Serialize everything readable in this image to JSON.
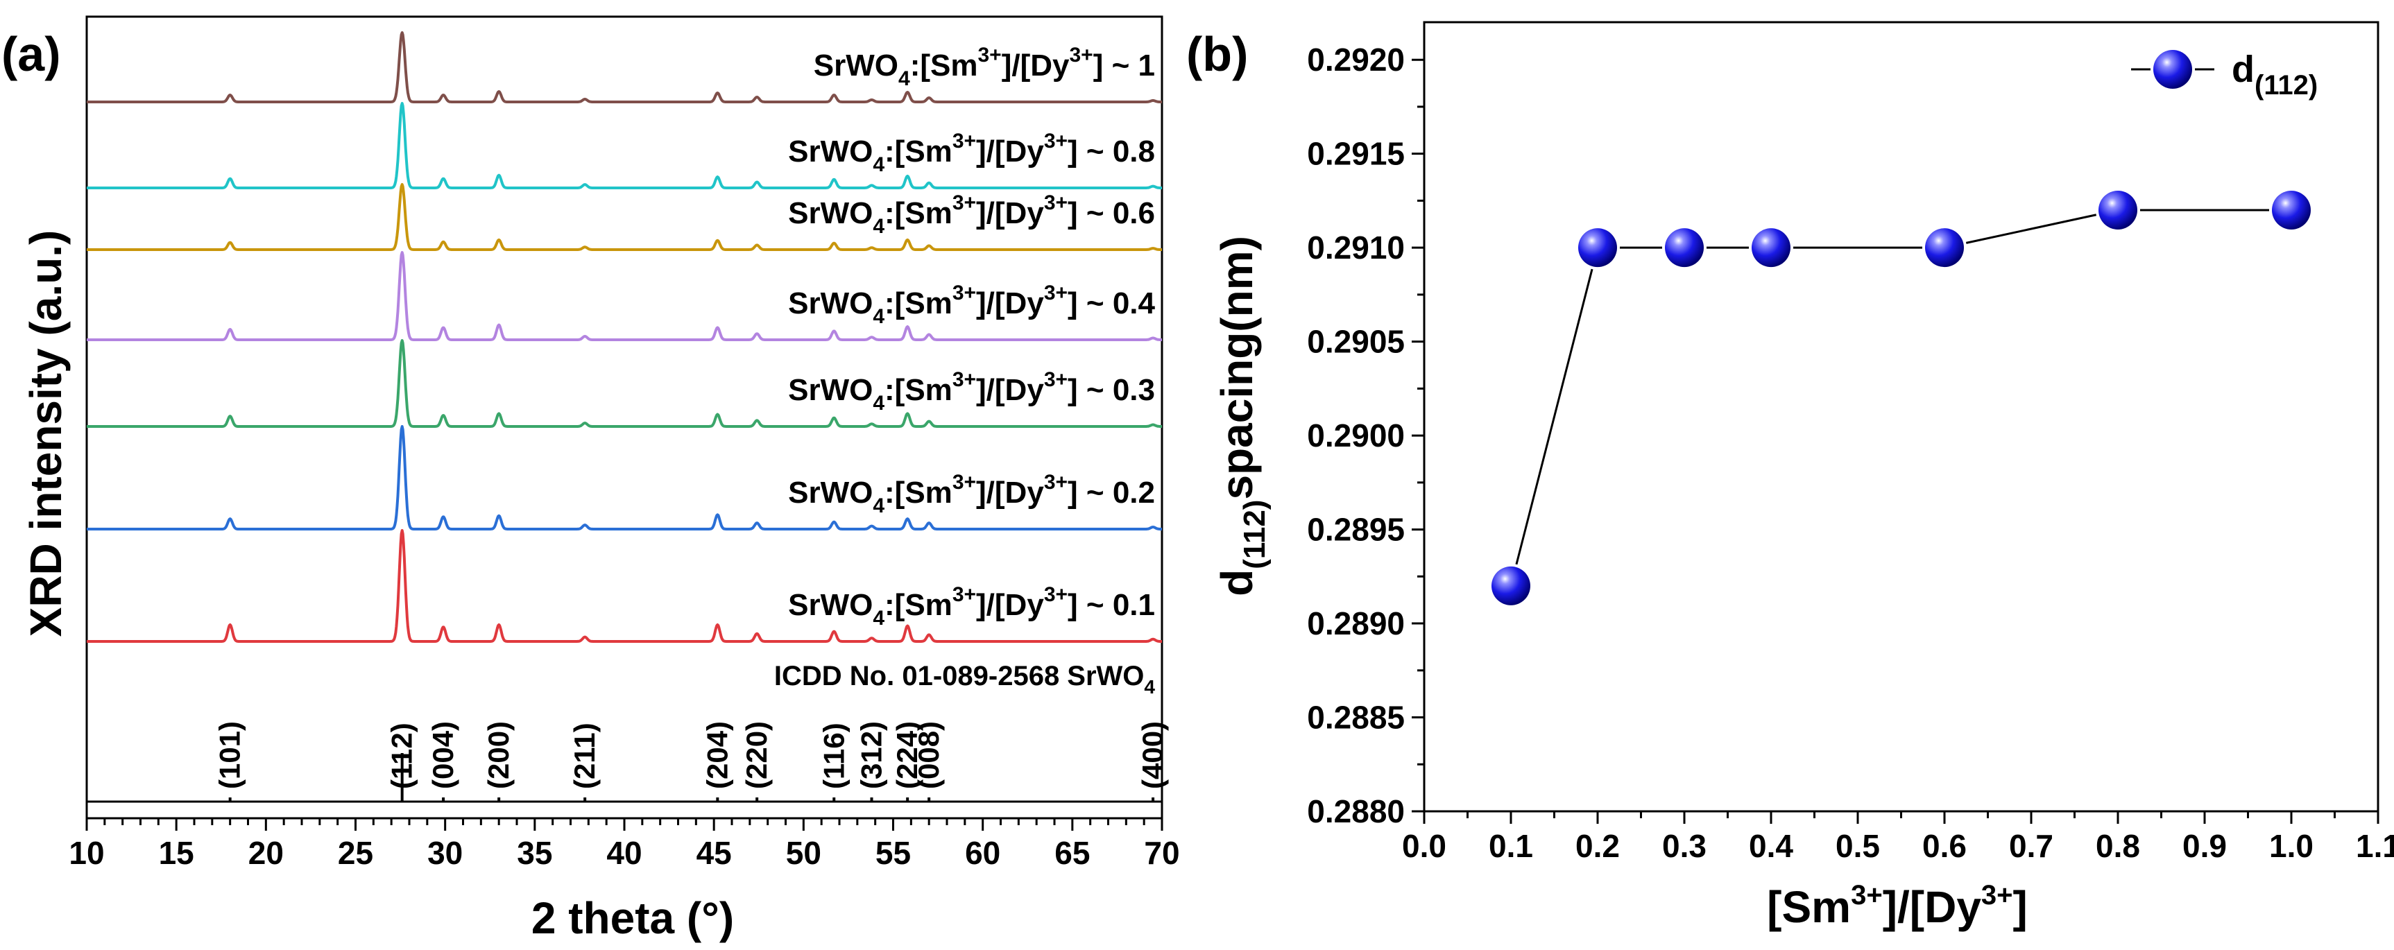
{
  "chart_data": [
    {
      "panel": "(a)",
      "type": "line",
      "xlabel": "2 theta (°)",
      "ylabel": "XRD intensity (a.u.)",
      "xlim": [
        10,
        70
      ],
      "xticks": [
        "10",
        "15",
        "20",
        "25",
        "30",
        "35",
        "40",
        "45",
        "50",
        "55",
        "60",
        "65",
        "70"
      ],
      "yticks": "none",
      "peaks_2theta": [
        18.0,
        27.6,
        29.9,
        33.0,
        37.8,
        45.2,
        47.4,
        51.7,
        53.8,
        55.8,
        57.0,
        69.5
      ],
      "series": [
        {
          "label_main": "SrWO",
          "label_rest": ":[Sm",
          "label_mid": "]/[Dy",
          "label_end": "] ~ 1",
          "color": "#7f4f4a",
          "peak_intensities": [
            0.1,
            1.0,
            0.1,
            0.15,
            0.04,
            0.13,
            0.07,
            0.1,
            0.03,
            0.14,
            0.06,
            0.02
          ]
        },
        {
          "label_main": "SrWO",
          "label_rest": ":[Sm",
          "label_mid": "]/[Dy",
          "label_end": "] ~ 0.8",
          "color": "#20c4c8",
          "peak_intensities": [
            0.11,
            1.0,
            0.11,
            0.15,
            0.04,
            0.13,
            0.07,
            0.1,
            0.03,
            0.14,
            0.06,
            0.02
          ]
        },
        {
          "label_main": "SrWO",
          "label_rest": ":[Sm",
          "label_mid": "]/[Dy",
          "label_end": "] ~ 0.6",
          "color": "#c9960c",
          "peak_intensities": [
            0.11,
            1.0,
            0.12,
            0.15,
            0.04,
            0.14,
            0.07,
            0.1,
            0.03,
            0.15,
            0.06,
            0.02
          ]
        },
        {
          "label_main": "SrWO",
          "label_rest": ":[Sm",
          "label_mid": "]/[Dy",
          "label_end": "] ~ 0.4",
          "color": "#b384e0",
          "peak_intensities": [
            0.12,
            1.0,
            0.14,
            0.17,
            0.04,
            0.14,
            0.07,
            0.1,
            0.03,
            0.15,
            0.06,
            0.02
          ]
        },
        {
          "label_main": "SrWO",
          "label_rest": ":[Sm",
          "label_mid": "]/[Dy",
          "label_end": "] ~ 0.3",
          "color": "#3aa66a",
          "peak_intensities": [
            0.12,
            1.0,
            0.13,
            0.15,
            0.04,
            0.14,
            0.07,
            0.1,
            0.03,
            0.15,
            0.06,
            0.02
          ]
        },
        {
          "label_main": "SrWO",
          "label_rest": ":[Sm",
          "label_mid": "]/[Dy",
          "label_end": "] ~ 0.2",
          "color": "#2a6fd6",
          "peak_intensities": [
            0.1,
            1.0,
            0.12,
            0.13,
            0.04,
            0.14,
            0.06,
            0.07,
            0.03,
            0.1,
            0.06,
            0.02
          ]
        },
        {
          "label_main": "SrWO",
          "label_rest": ":[Sm",
          "label_mid": "]/[Dy",
          "label_end": "] ~ 0.1",
          "color": "#e0393e",
          "peak_intensities": [
            0.15,
            1.0,
            0.13,
            0.15,
            0.04,
            0.15,
            0.07,
            0.09,
            0.03,
            0.14,
            0.06,
            0.02
          ]
        }
      ],
      "reference": {
        "title_main": "ICDD No. 01-089-2568 SrWO",
        "title_sub": "4",
        "color": "#000000",
        "lines": [
          {
            "hkl": "(101)",
            "two_theta": 18.0,
            "intensity": 0.05
          },
          {
            "hkl": "(112)",
            "two_theta": 27.6,
            "intensity": 1.0
          },
          {
            "hkl": "(004)",
            "two_theta": 29.9,
            "intensity": 0.05
          },
          {
            "hkl": "(200)",
            "two_theta": 33.0,
            "intensity": 0.05
          },
          {
            "hkl": "(211)",
            "two_theta": 37.8,
            "intensity": 0.03
          },
          {
            "hkl": "(204)",
            "two_theta": 45.2,
            "intensity": 0.05
          },
          {
            "hkl": "(220)",
            "two_theta": 47.4,
            "intensity": 0.03
          },
          {
            "hkl": "(116)",
            "two_theta": 51.7,
            "intensity": 0.04
          },
          {
            "hkl": "(312)",
            "two_theta": 53.8,
            "intensity": 0.02
          },
          {
            "hkl": "(224)",
            "two_theta": 55.8,
            "intensity": 0.05
          },
          {
            "hkl": "(008)",
            "two_theta": 57.0,
            "intensity": 0.03
          },
          {
            "hkl": "(400)",
            "two_theta": 69.5,
            "intensity": 0.02
          }
        ]
      }
    },
    {
      "panel": "(b)",
      "type": "line",
      "xlabel_parts": [
        "[Sm",
        "3+",
        "]/[Dy",
        "3+",
        "]"
      ],
      "ylabel_parts": [
        "d",
        "(112)",
        "spacing(nm)"
      ],
      "xlim": [
        0.0,
        1.1
      ],
      "ylim": [
        0.288,
        0.2922
      ],
      "xticks": [
        "0.0",
        "0.1",
        "0.2",
        "0.3",
        "0.4",
        "0.5",
        "0.6",
        "0.7",
        "0.8",
        "0.9",
        "1.0",
        "1.1"
      ],
      "yticks": [
        "0.2880",
        "0.2885",
        "0.2890",
        "0.2895",
        "0.2900",
        "0.2905",
        "0.2910",
        "0.2915",
        "0.2920"
      ],
      "legend": {
        "main": "d",
        "sub": "(112)",
        "position": "top-right"
      },
      "series": [
        {
          "marker_color": "#1a1ae6",
          "line_color": "#000000",
          "x": [
            0.1,
            0.2,
            0.3,
            0.4,
            0.6,
            0.8,
            1.0
          ],
          "y": [
            0.2892,
            0.291,
            0.291,
            0.291,
            0.291,
            0.2912,
            0.2912
          ]
        }
      ]
    }
  ],
  "labels": {
    "sup_3plus": "3+",
    "sub_4": "4"
  }
}
